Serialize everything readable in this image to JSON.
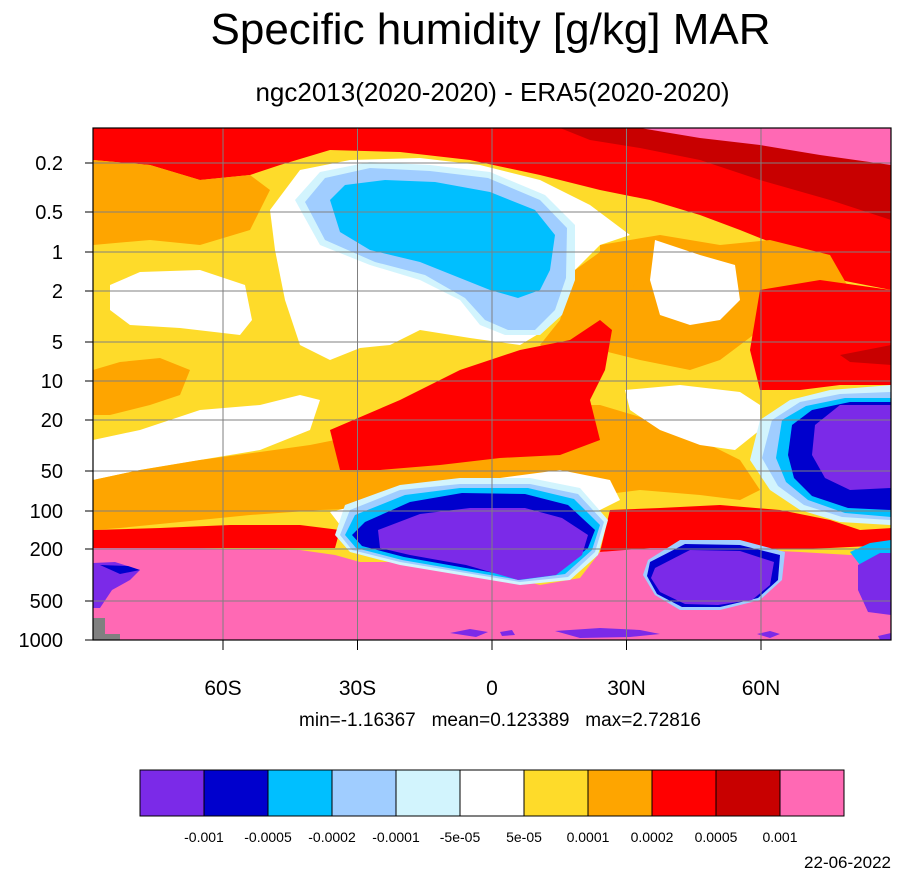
{
  "title": "Specific humidity [g/kg] MAR",
  "subtitle": "ngc2013(2020-2020) - ERA5(2020-2020)",
  "stats": {
    "min_label": "min=-1.16367",
    "mean_label": "mean=0.123389",
    "max_label": "max=2.72816"
  },
  "date": "22-06-2022",
  "chart_data": {
    "type": "heatmap",
    "x_ticks": [
      "60S",
      "30S",
      "0",
      "30N",
      "60N"
    ],
    "x_tick_values": [
      -60,
      -30,
      0,
      30,
      60
    ],
    "xlim": [
      -89,
      89
    ],
    "y_ticks": [
      "0.2",
      "0.5",
      "1",
      "2",
      "5",
      "10",
      "20",
      "50",
      "100",
      "200",
      "500",
      "1000"
    ],
    "y_scale": "log",
    "y_reversed": true,
    "grid": true,
    "colorbar": {
      "placement": "bottom",
      "labels": [
        "-0.001",
        "-0.0005",
        "-0.0002",
        "-0.0001",
        "-5e-05",
        "5e-05",
        "0.0001",
        "0.0002",
        "0.0005",
        "0.001"
      ],
      "colors": [
        "#7b2ae8",
        "#0000cd",
        "#00bfff",
        "#a0cdff",
        "#d2f4fd",
        "#ffffff",
        "#fedb2a",
        "#fea500",
        "#ff0000",
        "#c80000",
        "#ff69b4"
      ]
    },
    "missing_color": "#808080"
  }
}
